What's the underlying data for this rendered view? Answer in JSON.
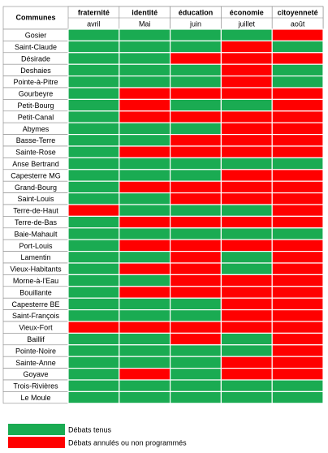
{
  "table": {
    "corner": "Communes",
    "columns": [
      {
        "title": "fraternité",
        "month": "avril"
      },
      {
        "title": "identité",
        "month": "Mai"
      },
      {
        "title": "éducation",
        "month": "juin"
      },
      {
        "title": "économie",
        "month": "juillet"
      },
      {
        "title": "citoyenneté",
        "month": "août"
      }
    ],
    "rows": [
      {
        "commune": "Gosier",
        "cells": [
          "#1aab52",
          "#1aab52",
          "#1aab52",
          "#1aab52",
          "#ff0000"
        ]
      },
      {
        "commune": "Saint-Claude",
        "cells": [
          "#1aab52",
          "#1aab52",
          "#1aab52",
          "#ff0000",
          "#1aab52"
        ]
      },
      {
        "commune": "Désirade",
        "cells": [
          "#1aab52",
          "#1aab52",
          "#ff0000",
          "#ff0000",
          "#ff0000"
        ]
      },
      {
        "commune": "Deshaies",
        "cells": [
          "#1aab52",
          "#1aab52",
          "#1aab52",
          "#ff0000",
          "#1aab52"
        ]
      },
      {
        "commune": "Pointe-à-Pitre",
        "cells": [
          "#1aab52",
          "#1aab52",
          "#1aab52",
          "#ff0000",
          "#1aab52"
        ]
      },
      {
        "commune": "Gourbeyre",
        "cells": [
          "#1aab52",
          "#ff0000",
          "#ff0000",
          "#ff0000",
          "#ff0000"
        ]
      },
      {
        "commune": "Petit-Bourg",
        "cells": [
          "#1aab52",
          "#ff0000",
          "#1aab52",
          "#1aab52",
          "#ff0000"
        ]
      },
      {
        "commune": "Petit-Canal",
        "cells": [
          "#1aab52",
          "#ff0000",
          "#ff0000",
          "#ff0000",
          "#ff0000"
        ]
      },
      {
        "commune": "Abymes",
        "cells": [
          "#1aab52",
          "#1aab52",
          "#1aab52",
          "#ff0000",
          "#ff0000"
        ]
      },
      {
        "commune": "Basse-Terre",
        "cells": [
          "#1aab52",
          "#1aab52",
          "#ff0000",
          "#ff0000",
          "#ff0000"
        ]
      },
      {
        "commune": "Sainte-Rose",
        "cells": [
          "#1aab52",
          "#ff0000",
          "#ff0000",
          "#ff0000",
          "#ff0000"
        ]
      },
      {
        "commune": "Anse Bertrand",
        "cells": [
          "#1aab52",
          "#1aab52",
          "#1aab52",
          "#1aab52",
          "#1aab52"
        ]
      },
      {
        "commune": "Capesterre MG",
        "cells": [
          "#1aab52",
          "#1aab52",
          "#1aab52",
          "#ff0000",
          "#ff0000"
        ]
      },
      {
        "commune": "Grand-Bourg",
        "cells": [
          "#1aab52",
          "#ff0000",
          "#ff0000",
          "#ff0000",
          "#ff0000"
        ]
      },
      {
        "commune": "Saint-Louis",
        "cells": [
          "#1aab52",
          "#1aab52",
          "#ff0000",
          "#ff0000",
          "#ff0000"
        ]
      },
      {
        "commune": "Terre-de-Haut",
        "cells": [
          "#ff0000",
          "#1aab52",
          "#1aab52",
          "#1aab52",
          "#ff0000"
        ]
      },
      {
        "commune": "Terre-de-Bas",
        "cells": [
          "#1aab52",
          "#ff0000",
          "#ff0000",
          "#ff0000",
          "#ff0000"
        ]
      },
      {
        "commune": "Baie-Mahault",
        "cells": [
          "#1aab52",
          "#1aab52",
          "#1aab52",
          "#1aab52",
          "#1aab52"
        ]
      },
      {
        "commune": "Port-Louis",
        "cells": [
          "#1aab52",
          "#ff0000",
          "#ff0000",
          "#ff0000",
          "#ff0000"
        ]
      },
      {
        "commune": "Lamentin",
        "cells": [
          "#1aab52",
          "#1aab52",
          "#ff0000",
          "#1aab52",
          "#ff0000"
        ]
      },
      {
        "commune": "Vieux-Habitants",
        "cells": [
          "#1aab52",
          "#ff0000",
          "#ff0000",
          "#1aab52",
          "#ff0000"
        ]
      },
      {
        "commune": "Morne-à-l'Eau",
        "cells": [
          "#1aab52",
          "#1aab52",
          "#ff0000",
          "#ff0000",
          "#ff0000"
        ]
      },
      {
        "commune": "Bouillante",
        "cells": [
          "#1aab52",
          "#ff0000",
          "#ff0000",
          "#ff0000",
          "#ff0000"
        ]
      },
      {
        "commune": "Capesterre BE",
        "cells": [
          "#1aab52",
          "#1aab52",
          "#1aab52",
          "#ff0000",
          "#ff0000"
        ]
      },
      {
        "commune": "Saint-François",
        "cells": [
          "#1aab52",
          "#1aab52",
          "#1aab52",
          "#ff0000",
          "#ff0000"
        ]
      },
      {
        "commune": "Vieux-Fort",
        "cells": [
          "#ff0000",
          "#ff0000",
          "#ff0000",
          "#ff0000",
          "#ff0000"
        ]
      },
      {
        "commune": "Baillif",
        "cells": [
          "#1aab52",
          "#1aab52",
          "#ff0000",
          "#1aab52",
          "#ff0000"
        ]
      },
      {
        "commune": "Pointe-Noire",
        "cells": [
          "#1aab52",
          "#1aab52",
          "#1aab52",
          "#1aab52",
          "#ff0000"
        ]
      },
      {
        "commune": "Sainte-Anne",
        "cells": [
          "#1aab52",
          "#1aab52",
          "#1aab52",
          "#ff0000",
          "#ff0000"
        ]
      },
      {
        "commune": "Goyave",
        "cells": [
          "#1aab52",
          "#ff0000",
          "#1aab52",
          "#ff0000",
          "#ff0000"
        ]
      },
      {
        "commune": "Trois-Rivières",
        "cells": [
          "#1aab52",
          "#1aab52",
          "#1aab52",
          "#1aab52",
          "#1aab52"
        ]
      },
      {
        "commune": "Le Moule",
        "cells": [
          "#1aab52",
          "#1aab52",
          "#1aab52",
          "#1aab52",
          "#1aab52"
        ]
      }
    ]
  },
  "legend": [
    {
      "label": "Débats tenus",
      "color": "#1aab52"
    },
    {
      "label": "Débats annulés ou non programmés",
      "color": "#ff0000"
    }
  ]
}
